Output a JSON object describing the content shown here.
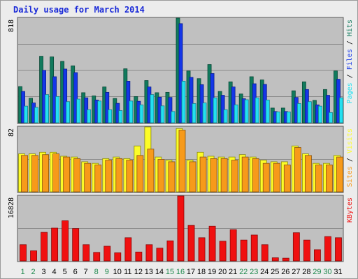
{
  "title": "Daily usage for March 2014",
  "chart_data": {
    "type": "bar",
    "title": "Daily usage for March 2014",
    "categories": [
      "1",
      "2",
      "3",
      "4",
      "5",
      "6",
      "7",
      "8",
      "9",
      "10",
      "11",
      "12",
      "13",
      "14",
      "15",
      "16",
      "17",
      "18",
      "19",
      "20",
      "21",
      "22",
      "23",
      "24",
      "25",
      "26",
      "27",
      "28",
      "29",
      "30",
      "31"
    ],
    "weekend_days": [
      "1",
      "2",
      "8",
      "9",
      "15",
      "16",
      "22",
      "23",
      "29",
      "30"
    ],
    "colors": {
      "hits": "#117a5d",
      "files": "#1436e8",
      "pages": "#23e0f0",
      "visits": "#fcfc28",
      "sites": "#f79a1a",
      "kbytes": "#f01010",
      "weekday_label": "#000000",
      "weekend_label": "#1f8a4e",
      "plot_bg": "#c0c0c0",
      "grid": "#8a8a8a"
    },
    "panels": [
      {
        "name": "pages-files-hits",
        "max_label": "818",
        "ylim": [
          0,
          818
        ],
        "legend": [
          "Pages",
          "Files",
          "Hits"
        ],
        "series": [
          {
            "name": "Hits",
            "values": [
              283,
              192,
              520,
              515,
              480,
              445,
              235,
              210,
              280,
              190,
              422,
              205,
              330,
              235,
              238,
              818,
              405,
              345,
              455,
              245,
              320,
              225,
              360,
              335,
              115,
              115,
              250,
              320,
              175,
              260,
              405
            ]
          },
          {
            "name": "Files",
            "values": [
              245,
              155,
              410,
              360,
              420,
              392,
              195,
              178,
              238,
              152,
              325,
              168,
              280,
              200,
              198,
              775,
              355,
              298,
              385,
              215,
              280,
              188,
              305,
              300,
              88,
              88,
              198,
              260,
              140,
              215,
              340
            ]
          },
          {
            "name": "Pages",
            "values": [
              130,
              120,
              220,
              205,
              165,
              185,
              102,
              170,
              102,
              95,
              170,
              140,
              220,
              132,
              88,
              325,
              150,
              155,
              195,
              102,
              140,
              180,
              195,
              178,
              85,
              85,
              150,
              165,
              130,
              80,
              195
            ]
          }
        ]
      },
      {
        "name": "sites-visits",
        "max_label": "82",
        "ylim": [
          0,
          82
        ],
        "legend": [
          "Sites",
          "Visits"
        ],
        "series": [
          {
            "name": "Visits",
            "values": [
              48,
              48,
              50,
              50,
              45,
              44,
              38,
              36,
              42,
              44,
              42,
              58,
              82,
              44,
              40,
              80,
              40,
              50,
              45,
              44,
              44,
              47,
              44,
              40,
              38,
              38,
              58,
              48,
              36,
              36,
              46
            ]
          },
          {
            "name": "Sites",
            "values": [
              46,
              46,
              47,
              48,
              44,
              42,
              36,
              34,
              40,
              42,
              40,
              46,
              54,
              41,
              38,
              78,
              38,
              44,
              42,
              42,
              40,
              44,
              42,
              36,
              36,
              34,
              56,
              46,
              34,
              34,
              44
            ]
          }
        ]
      },
      {
        "name": "kbytes",
        "max_label": "16828",
        "ylim": [
          0,
          16828
        ],
        "legend": [
          "KBytes"
        ],
        "series": [
          {
            "name": "KBytes",
            "values": [
              4200,
              2600,
              7400,
              8500,
              10400,
              8400,
              4200,
              2200,
              3800,
              2100,
              6000,
              2300,
              4200,
              3300,
              5200,
              16828,
              9200,
              6000,
              9000,
              5100,
              8100,
              5400,
              6700,
              4200,
              800,
              700,
              7300,
              5400,
              2900,
              6300,
              6000
            ]
          }
        ]
      }
    ]
  }
}
